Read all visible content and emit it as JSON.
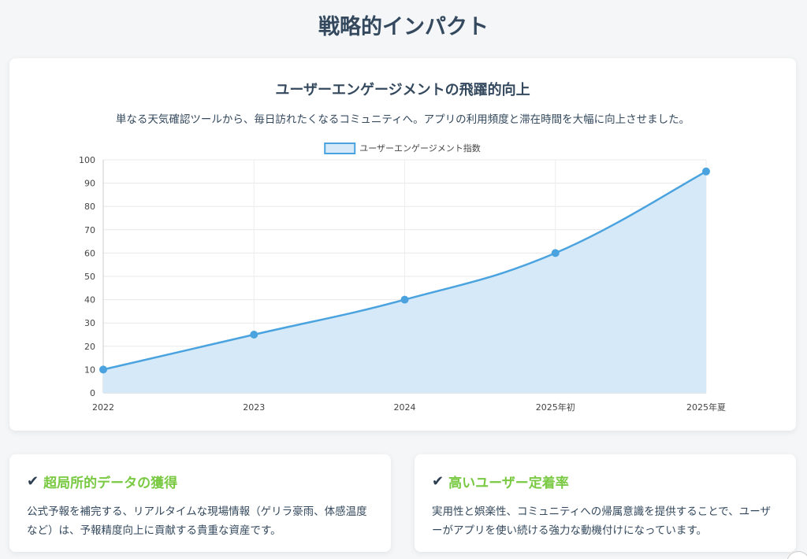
{
  "page": {
    "title": "戦略的インパクト"
  },
  "chart_card": {
    "title": "ユーザーエンゲージメントの飛躍的向上",
    "description": "単なる天気確認ツールから、毎日訪れたくなるコミュニティへ。アプリの利用頻度と滞在時間を大幅に向上させました。"
  },
  "chart_data": {
    "type": "line",
    "x": [
      "2022",
      "2023",
      "2024",
      "2025年初",
      "2025年夏"
    ],
    "series": [
      {
        "name": "ユーザーエンゲージメント指数",
        "values": [
          10,
          25,
          40,
          60,
          95
        ],
        "color": "#4aa3df",
        "fill": "#d6e9f8"
      }
    ],
    "ylim": [
      0,
      100
    ],
    "yticks": [
      "0",
      "10",
      "20",
      "30",
      "40",
      "50",
      "60",
      "70",
      "80",
      "90",
      "100"
    ],
    "grid": true,
    "legend": "top-center",
    "fill_area": true
  },
  "cards": [
    {
      "icon": "check-icon",
      "title": "超局所的データの獲得",
      "body": "公式予報を補完する、リアルタイムな現場情報（ゲリラ豪雨、体感温度など）は、予報精度向上に貢献する貴重な資産です。"
    },
    {
      "icon": "check-icon",
      "title": "高いユーザー定着率",
      "body": "実用性と娯楽性、コミュニティへの帰属意識を提供することで、ユーザーがアプリを使い続ける強力な動機付けになっています。"
    }
  ],
  "check_glyph": "✔",
  "colors": {
    "accent": "#7ac943",
    "line": "#4aa3df"
  }
}
